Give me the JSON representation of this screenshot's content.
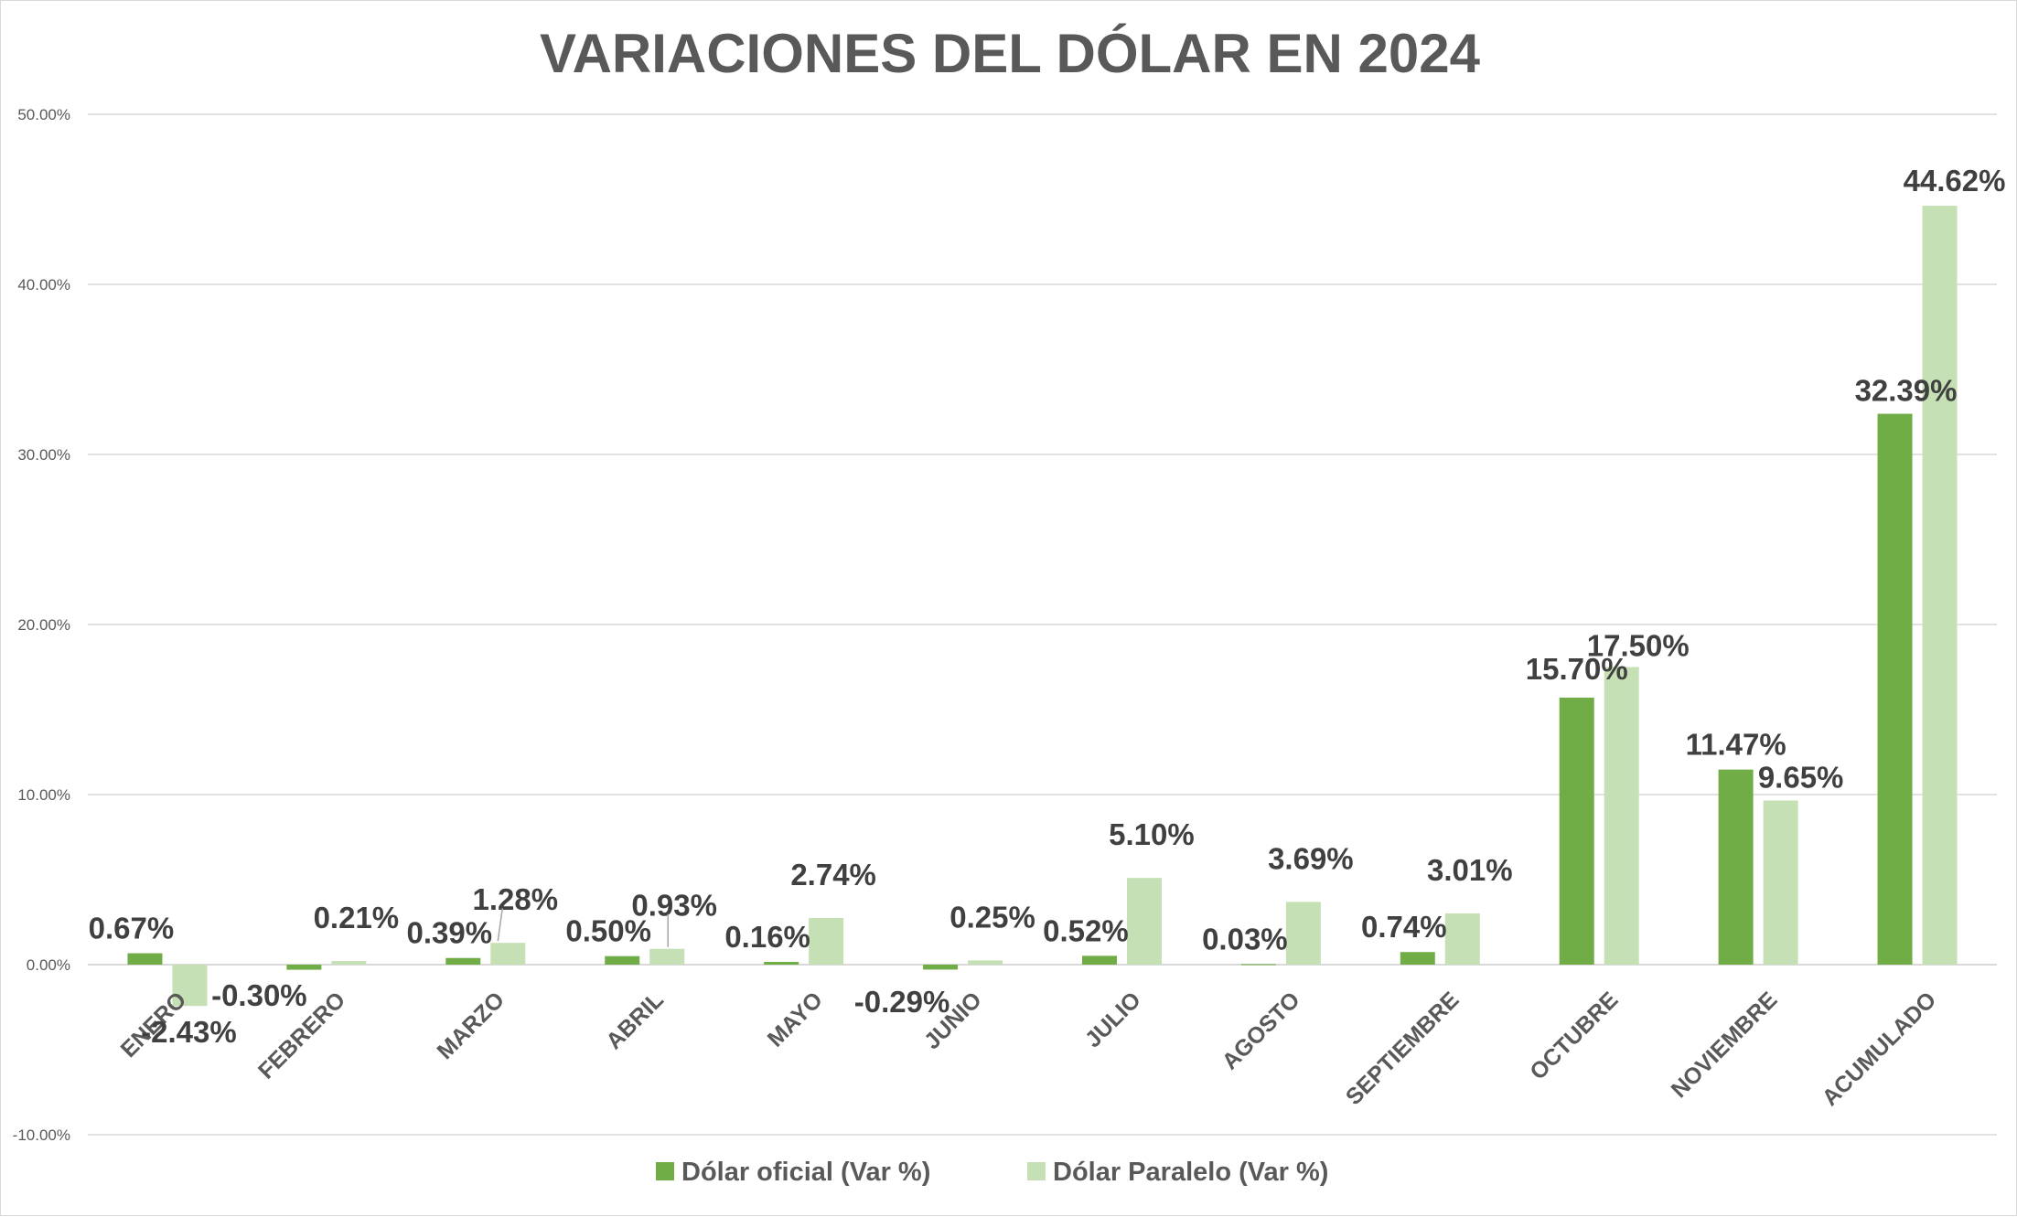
{
  "chart_data": {
    "type": "bar",
    "title": "VARIACIONES DEL DÓLAR EN 2024",
    "xlabel": "",
    "ylabel": "",
    "ylim": [
      -10,
      50
    ],
    "yticks": [
      -10,
      0,
      10,
      20,
      30,
      40,
      50
    ],
    "ytick_labels": [
      "-10.00%",
      "0.00%",
      "10.00%",
      "20.00%",
      "30.00%",
      "40.00%",
      "50.00%"
    ],
    "grid": true,
    "legend_position": "bottom",
    "categories": [
      "ENERO",
      "FEBRERO",
      "MARZO",
      "ABRIL",
      "MAYO",
      "JUNIO",
      "JULIO",
      "AGOSTO",
      "SEPTIEMBRE",
      "OCTUBRE",
      "NOVIEMBRE",
      "ACUMULADO"
    ],
    "series": [
      {
        "name": "Dólar oficial (Var %)",
        "color": "#70ad47",
        "values": [
          0.67,
          -0.3,
          0.39,
          0.5,
          0.16,
          -0.29,
          0.52,
          0.03,
          0.74,
          15.7,
          11.47,
          32.39
        ],
        "labels": [
          "0.67%",
          "-0.30%",
          "0.39%",
          "0.50%",
          "0.16%",
          "-0.29%",
          "0.52%",
          "0.03%",
          "0.74%",
          "15.70%",
          "11.47%",
          "32.39%"
        ]
      },
      {
        "name": "Dólar Paralelo (Var %)",
        "color": "#c5e0b4",
        "values": [
          -2.43,
          0.21,
          1.28,
          0.93,
          2.74,
          0.25,
          5.1,
          3.69,
          3.01,
          17.5,
          9.65,
          44.62
        ],
        "labels": [
          "-2.43%",
          "0.21%",
          "1.28%",
          "0.93%",
          "2.74%",
          "0.25%",
          "5.10%",
          "3.69%",
          "3.01%",
          "17.50%",
          "9.65%",
          "44.62%"
        ]
      }
    ]
  }
}
